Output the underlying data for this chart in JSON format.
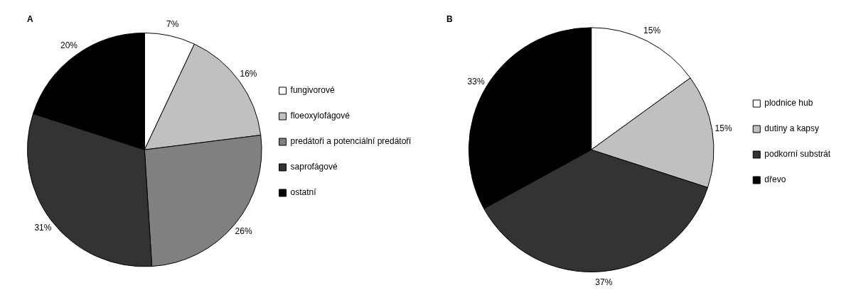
{
  "chart_data": [
    {
      "type": "pie",
      "title": "A",
      "categories": [
        "fungivorové",
        "floeoxylofágové",
        "predátoři a potenciální predátoři",
        "saprofágové",
        "ostatní"
      ],
      "values": [
        7,
        16,
        26,
        31,
        20
      ],
      "colors": [
        "#ffffff",
        "#c0c0c0",
        "#808080",
        "#333333",
        "#000000"
      ],
      "value_labels": [
        "7%",
        "16%",
        "26%",
        "31%",
        "20%"
      ],
      "legend": "right"
    },
    {
      "type": "pie",
      "title": "B",
      "categories": [
        "plodnice hub",
        "dutiny a kapsy",
        "podkorní substrát",
        "dřevo"
      ],
      "values": [
        15,
        15,
        37,
        33
      ],
      "colors": [
        "#ffffff",
        "#c0c0c0",
        "#333333",
        "#000000"
      ],
      "value_labels": [
        "15%",
        "15%",
        "37%",
        "33%"
      ],
      "legend": "right"
    }
  ]
}
